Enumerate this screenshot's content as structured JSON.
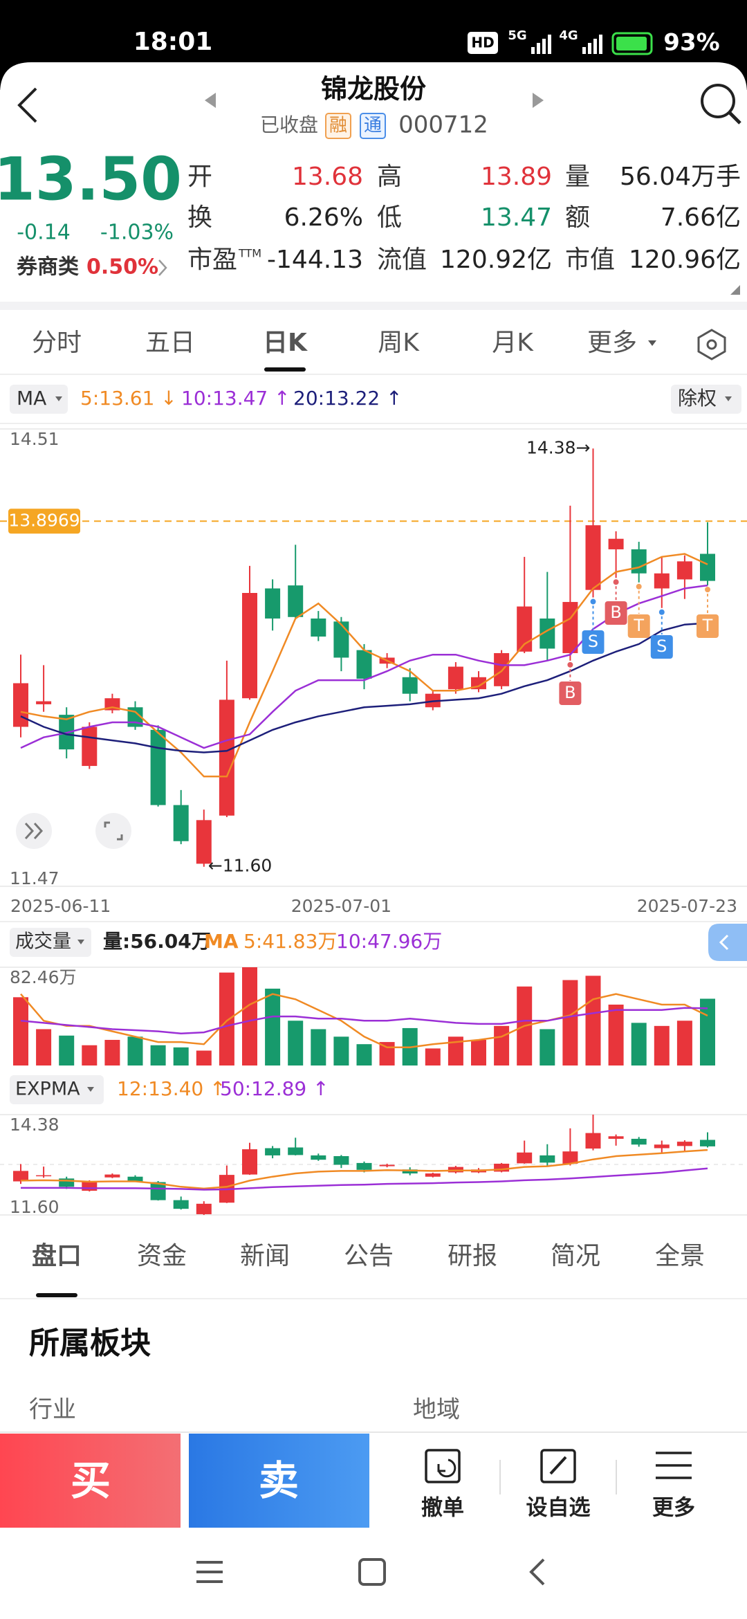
{
  "status_bar": {
    "time": "18:01",
    "hd": "HD",
    "net1": "5G",
    "net2": "4G",
    "battery": "93%"
  },
  "header": {
    "title": "锦龙股份",
    "status": "已收盘",
    "badge1": "融",
    "badge2": "通",
    "code": "000712"
  },
  "quote": {
    "price": "13.50",
    "change": "-0.14",
    "change_pct": "-1.03%",
    "sector": "券商类",
    "sector_change": "0.50%",
    "fields": [
      {
        "label": "开",
        "value": "13.68",
        "color": "#e0323a"
      },
      {
        "label": "高",
        "value": "13.89",
        "color": "#e0323a"
      },
      {
        "label": "量",
        "value": "56.04万手",
        "color": "#222222"
      },
      {
        "label": "换",
        "value": "6.26%",
        "color": "#222222"
      },
      {
        "label": "低",
        "value": "13.47",
        "color": "#15906a"
      },
      {
        "label": "额",
        "value": "7.66亿",
        "color": "#222222"
      },
      {
        "label": "市盈",
        "sup": "TTM",
        "value": "-144.13",
        "color": "#222222"
      },
      {
        "label": "流值",
        "value": "120.92亿",
        "color": "#222222"
      },
      {
        "label": "市值",
        "value": "120.96亿",
        "color": "#222222"
      }
    ]
  },
  "period_tabs": [
    "分时",
    "五日",
    "日K",
    "周K",
    "月K",
    "更多"
  ],
  "chart_data": [
    {
      "type": "candlestick",
      "indicator": "MA",
      "adjust": "除权",
      "categories": [
        "2025-06-11",
        null,
        null,
        null,
        null,
        null,
        null,
        null,
        null,
        null,
        null,
        null,
        null,
        null,
        "2025-07-01",
        null,
        null,
        null,
        null,
        null,
        null,
        null,
        null,
        null,
        null,
        null,
        null,
        null,
        null,
        null,
        "2025-07-23"
      ],
      "open": [
        12.53,
        12.68,
        12.61,
        12.27,
        12.64,
        12.66,
        12.51,
        12.01,
        11.62,
        11.94,
        12.72,
        13.45,
        13.47,
        13.25,
        13.23,
        13.04,
        12.95,
        12.86,
        12.66,
        12.78,
        12.78,
        12.8,
        13.03,
        13.25,
        13.02,
        13.44,
        13.71,
        13.71,
        13.45,
        13.51,
        13.68
      ],
      "high": [
        13.01,
        12.94,
        12.66,
        12.56,
        12.75,
        12.7,
        12.54,
        12.11,
        11.98,
        12.97,
        13.6,
        13.51,
        13.74,
        13.3,
        13.26,
        13.08,
        13.02,
        12.92,
        12.77,
        12.96,
        12.9,
        13.04,
        13.66,
        13.56,
        14.0,
        14.38,
        13.83,
        13.76,
        13.66,
        13.67,
        13.89
      ],
      "low": [
        12.46,
        12.63,
        12.32,
        12.25,
        12.62,
        12.51,
        12.0,
        11.75,
        11.6,
        11.93,
        12.71,
        13.17,
        13.25,
        13.1,
        12.9,
        12.78,
        12.92,
        12.7,
        12.64,
        12.75,
        12.76,
        12.78,
        13.02,
        12.97,
        12.97,
        13.39,
        13.52,
        13.49,
        13.32,
        13.38,
        13.47
      ],
      "close": [
        12.82,
        12.7,
        12.38,
        12.53,
        12.72,
        12.53,
        12.01,
        11.77,
        11.91,
        12.71,
        13.42,
        13.25,
        13.26,
        13.13,
        12.99,
        12.85,
        12.99,
        12.75,
        12.75,
        12.93,
        12.86,
        13.02,
        13.33,
        13.05,
        13.36,
        13.87,
        13.78,
        13.55,
        13.55,
        13.63,
        13.5
      ],
      "up_color": "#e8353b",
      "down_color": "#179a6c",
      "series": [
        {
          "name": "5:13.61 ↓",
          "color": "#f08a24",
          "values": [
            12.63,
            12.6,
            12.58,
            12.63,
            12.66,
            12.63,
            12.49,
            12.36,
            12.2,
            12.2,
            12.56,
            12.9,
            13.25,
            13.35,
            13.21,
            13.04,
            12.97,
            12.9,
            12.77,
            12.77,
            12.8,
            12.9,
            13.08,
            13.17,
            13.25,
            13.45,
            13.56,
            13.59,
            13.66,
            13.68,
            13.61
          ]
        },
        {
          "name": "10:13.47 ↑",
          "color": "#9b2fd6",
          "values": [
            12.39,
            12.46,
            12.49,
            12.53,
            12.56,
            12.56,
            12.53,
            12.46,
            12.39,
            12.44,
            12.48,
            12.63,
            12.77,
            12.84,
            12.84,
            12.84,
            12.9,
            12.97,
            13.01,
            13.01,
            12.97,
            12.94,
            12.94,
            12.97,
            13.01,
            13.18,
            13.28,
            13.35,
            13.4,
            13.45,
            13.47
          ]
        },
        {
          "name": "20:13.22 ↑",
          "color": "#1d1f7a",
          "values": [
            12.6,
            12.53,
            12.48,
            12.46,
            12.44,
            12.42,
            12.39,
            12.37,
            12.36,
            12.37,
            12.44,
            12.51,
            12.56,
            12.6,
            12.63,
            12.66,
            12.67,
            12.68,
            12.7,
            12.71,
            12.72,
            12.75,
            12.8,
            12.84,
            12.9,
            12.97,
            13.03,
            13.08,
            13.17,
            13.21,
            13.22
          ]
        }
      ],
      "ylim": [
        11.47,
        14.51
      ],
      "yticks": [
        11.47,
        14.51
      ],
      "reference_line": 13.8969,
      "reference_color": "#f5a623",
      "annotations": [
        {
          "value": 14.38,
          "label": "14.38→"
        },
        {
          "value": 11.6,
          "label": "←11.60"
        }
      ],
      "signals": [
        "B",
        "S",
        "B",
        "T",
        "S",
        "T"
      ],
      "signal_colors": {
        "B": "#e25d62",
        "S": "#3f8fe8",
        "T": "#f4a35d"
      }
    },
    {
      "type": "bar",
      "indicator": "成交量",
      "summary": "量:56.04万",
      "ma_label": "MA",
      "values": [
        57.3,
        30.5,
        25.1,
        17.0,
        21.5,
        24.2,
        17.0,
        15.2,
        12.5,
        78.0,
        82.46,
        64.5,
        37.6,
        30.5,
        24.2,
        17.9,
        19.7,
        31.4,
        14.3,
        24.2,
        21.5,
        33.2,
        66.3,
        30.5,
        71.7,
        75.3,
        51.1,
        35.8,
        33.2,
        37.6,
        56.04
      ],
      "ylim": [
        0,
        82.46
      ],
      "yticks": [
        {
          "value": 82.46,
          "label": "82.46万"
        }
      ],
      "series": [
        {
          "name": "5:41.83万",
          "color": "#f08a24",
          "values": [
            60.0,
            37.6,
            33.2,
            33.2,
            28.7,
            24.2,
            19.7,
            19.7,
            17.9,
            37.6,
            51.1,
            60.0,
            55.6,
            46.6,
            37.6,
            24.2,
            15.2,
            15.2,
            17.9,
            19.7,
            21.5,
            24.2,
            33.2,
            37.6,
            42.1,
            55.6,
            60.0,
            55.6,
            51.1,
            51.1,
            41.83
          ]
        },
        {
          "name": "10:47.96万",
          "color": "#9b2fd6",
          "values": [
            37.6,
            35.8,
            34.0,
            32.3,
            30.5,
            29.6,
            28.7,
            26.9,
            27.8,
            33.2,
            37.6,
            41.2,
            41.2,
            39.4,
            39.4,
            37.6,
            37.6,
            39.4,
            37.6,
            35.8,
            34.9,
            34.9,
            37.6,
            37.6,
            41.2,
            43.9,
            46.6,
            46.6,
            46.6,
            48.4,
            47.96
          ]
        }
      ]
    },
    {
      "type": "line",
      "indicator": "EXPMA",
      "ylim": [
        11.6,
        14.38
      ],
      "yticks": [
        {
          "value": 11.6,
          "label": "11.60"
        },
        14.38
      ],
      "series": [
        {
          "name": "12:13.40 ↑",
          "color": "#f08a24",
          "values": [
            12.55,
            12.56,
            12.55,
            12.52,
            12.53,
            12.53,
            12.47,
            12.38,
            12.33,
            12.38,
            12.55,
            12.66,
            12.75,
            12.8,
            12.82,
            12.82,
            12.84,
            12.83,
            12.82,
            12.83,
            12.83,
            12.86,
            12.93,
            12.95,
            13.02,
            13.14,
            13.23,
            13.27,
            13.31,
            13.36,
            13.4
          ]
        },
        {
          "name": "50:12.89 ↑",
          "color": "#9b2fd6",
          "values": [
            12.35,
            12.35,
            12.35,
            12.34,
            12.34,
            12.34,
            12.33,
            12.32,
            12.3,
            12.31,
            12.34,
            12.37,
            12.39,
            12.41,
            12.43,
            12.44,
            12.46,
            12.47,
            12.48,
            12.5,
            12.51,
            12.53,
            12.56,
            12.58,
            12.61,
            12.65,
            12.69,
            12.73,
            12.77,
            12.83,
            12.89
          ]
        }
      ]
    }
  ],
  "info_tabs": [
    "盘口",
    "资金",
    "新闻",
    "公告",
    "研报",
    "简况",
    "全景"
  ],
  "section": {
    "title": "所属板块",
    "labels": [
      "行业",
      "地域"
    ]
  },
  "actions": {
    "buy": "买",
    "sell": "卖",
    "items": [
      "撤单",
      "设自选",
      "更多"
    ]
  }
}
